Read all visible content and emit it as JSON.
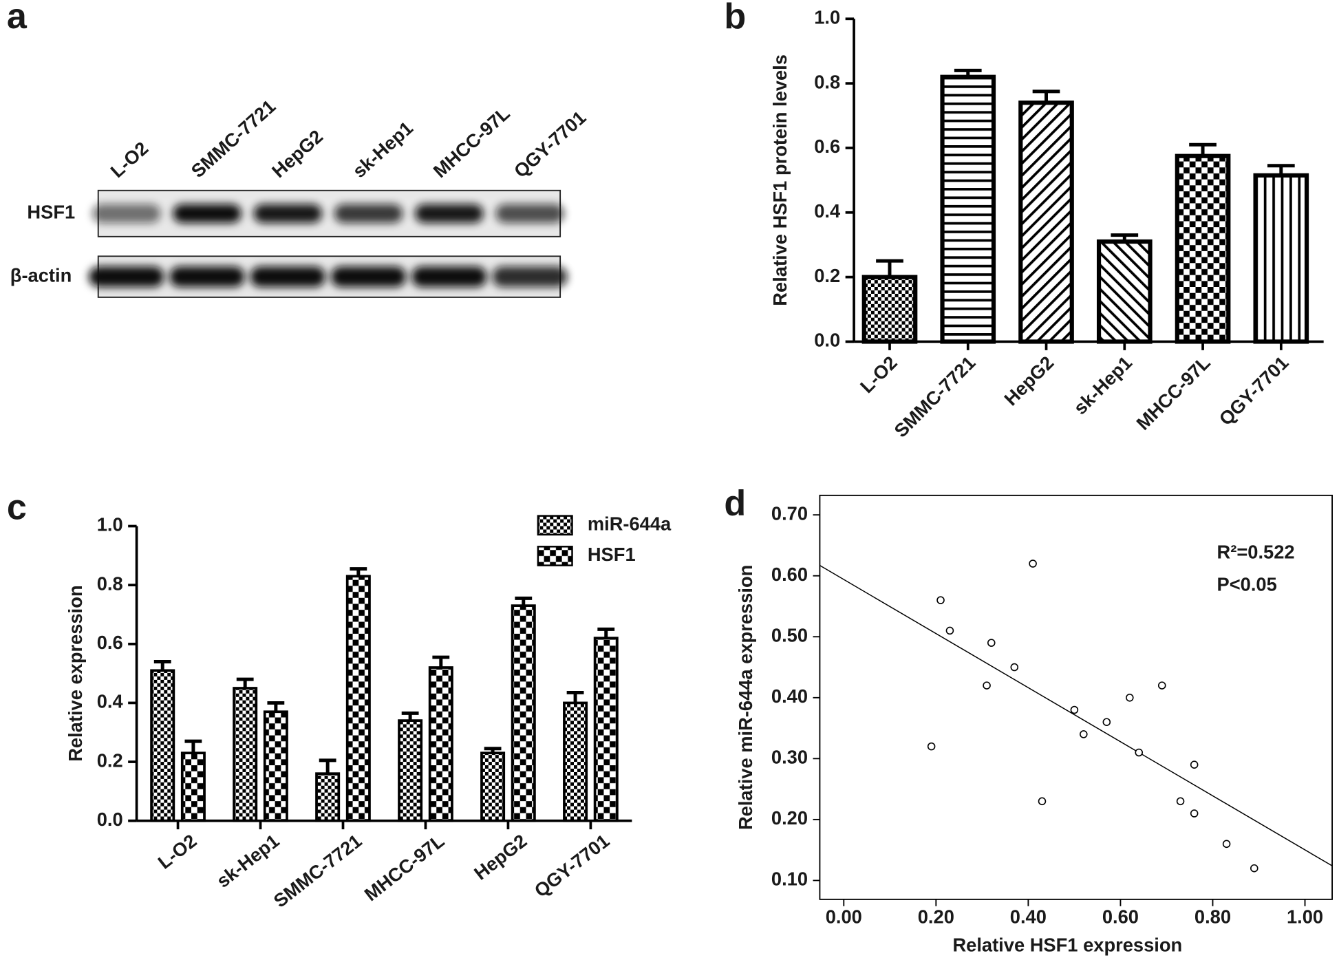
{
  "blot": {
    "panel_label": "a",
    "lanes": [
      "L-O2",
      "SMMC-7721",
      "HepG2",
      "sk-Hep1",
      "MHCC-97L",
      "QGY-7701"
    ],
    "rows": [
      "HSF1",
      "β-actin"
    ]
  },
  "chart_data": [
    {
      "type": "bar",
      "panel_label": "b",
      "ylabel": "Relative HSF1 protein levels",
      "categories": [
        "L-O2",
        "SMMC-7721",
        "HepG2",
        "sk-Hep1",
        "MHCC-97L",
        "QGY-7701"
      ],
      "values": [
        0.2,
        0.82,
        0.74,
        0.31,
        0.575,
        0.515
      ],
      "errors": [
        0.05,
        0.02,
        0.035,
        0.02,
        0.035,
        0.03
      ],
      "patterns": [
        "checker-small",
        "horizontal",
        "diagonal",
        "diagonal-reverse",
        "checker",
        "vertical"
      ],
      "color": "#000000",
      "ylim": [
        0,
        1
      ],
      "yticks": [
        {
          "value": 0,
          "label": "0.0"
        },
        0.2,
        0.4,
        0.6,
        0.8,
        {
          "value": 1,
          "label": "1.0"
        }
      ]
    },
    {
      "type": "grouped_bar",
      "panel_label": "c",
      "ylabel": "Relative expression",
      "categories": [
        "L-O2",
        "sk-Hep1",
        "SMMC-7721",
        "MHCC-97L",
        "HepG2",
        "QGY-7701"
      ],
      "series": [
        {
          "name": "miR-644a",
          "pattern": "checker-small",
          "color": "#000000",
          "values": [
            0.51,
            0.45,
            0.16,
            0.34,
            0.23,
            0.4
          ],
          "errors": [
            0.03,
            0.03,
            0.045,
            0.025,
            0.015,
            0.035
          ]
        },
        {
          "name": "HSF1",
          "pattern": "checker",
          "color": "#000000",
          "values": [
            0.23,
            0.37,
            0.83,
            0.52,
            0.73,
            0.62
          ],
          "errors": [
            0.04,
            0.03,
            0.025,
            0.035,
            0.025,
            0.03
          ]
        }
      ],
      "legend": "upper right",
      "ylim": [
        0,
        1
      ],
      "yticks": [
        {
          "value": 0,
          "label": "0.0"
        },
        0.2,
        0.4,
        0.6,
        0.8,
        {
          "value": 1,
          "label": "1.0"
        }
      ]
    },
    {
      "type": "scatter",
      "panel_label": "d",
      "xlabel": "Relative HSF1 expression",
      "ylabel": "Relative miR-644a expression",
      "x": [
        0.41,
        0.21,
        0.23,
        0.32,
        0.37,
        0.31,
        0.69,
        0.62,
        0.5,
        0.57,
        0.52,
        0.19,
        0.64,
        0.76,
        0.43,
        0.73,
        0.76,
        0.83,
        0.89
      ],
      "y": [
        0.62,
        0.56,
        0.51,
        0.49,
        0.45,
        0.42,
        0.42,
        0.4,
        0.38,
        0.36,
        0.34,
        0.32,
        0.31,
        0.29,
        0.23,
        0.23,
        0.21,
        0.16,
        0.12
      ],
      "fit_line": {
        "x": [
          -0.052,
          1.059
        ],
        "y": [
          0.617,
          0.124
        ]
      },
      "annotations": [
        "R²=0.522",
        "P<0.05"
      ],
      "color": "#000000",
      "xlim": [
        -0.052,
        1.059
      ],
      "ylim": [
        0.069,
        0.732
      ],
      "xticks": [
        {
          "value": 0,
          "label": "0.00"
        },
        {
          "value": 0.2,
          "label": "0.20"
        },
        {
          "value": 0.4,
          "label": "0.40"
        },
        {
          "value": 0.6,
          "label": "0.60"
        },
        {
          "value": 0.8,
          "label": "0.80"
        },
        {
          "value": 1,
          "label": "1.00"
        }
      ],
      "yticks": [
        {
          "value": 0.1,
          "label": "0.10"
        },
        {
          "value": 0.2,
          "label": "0.20"
        },
        {
          "value": 0.3,
          "label": "0.30"
        },
        {
          "value": 0.4,
          "label": "0.40"
        },
        {
          "value": 0.5,
          "label": "0.50"
        },
        {
          "value": 0.6,
          "label": "0.60"
        },
        {
          "value": 0.7,
          "label": "0.70"
        }
      ]
    }
  ]
}
